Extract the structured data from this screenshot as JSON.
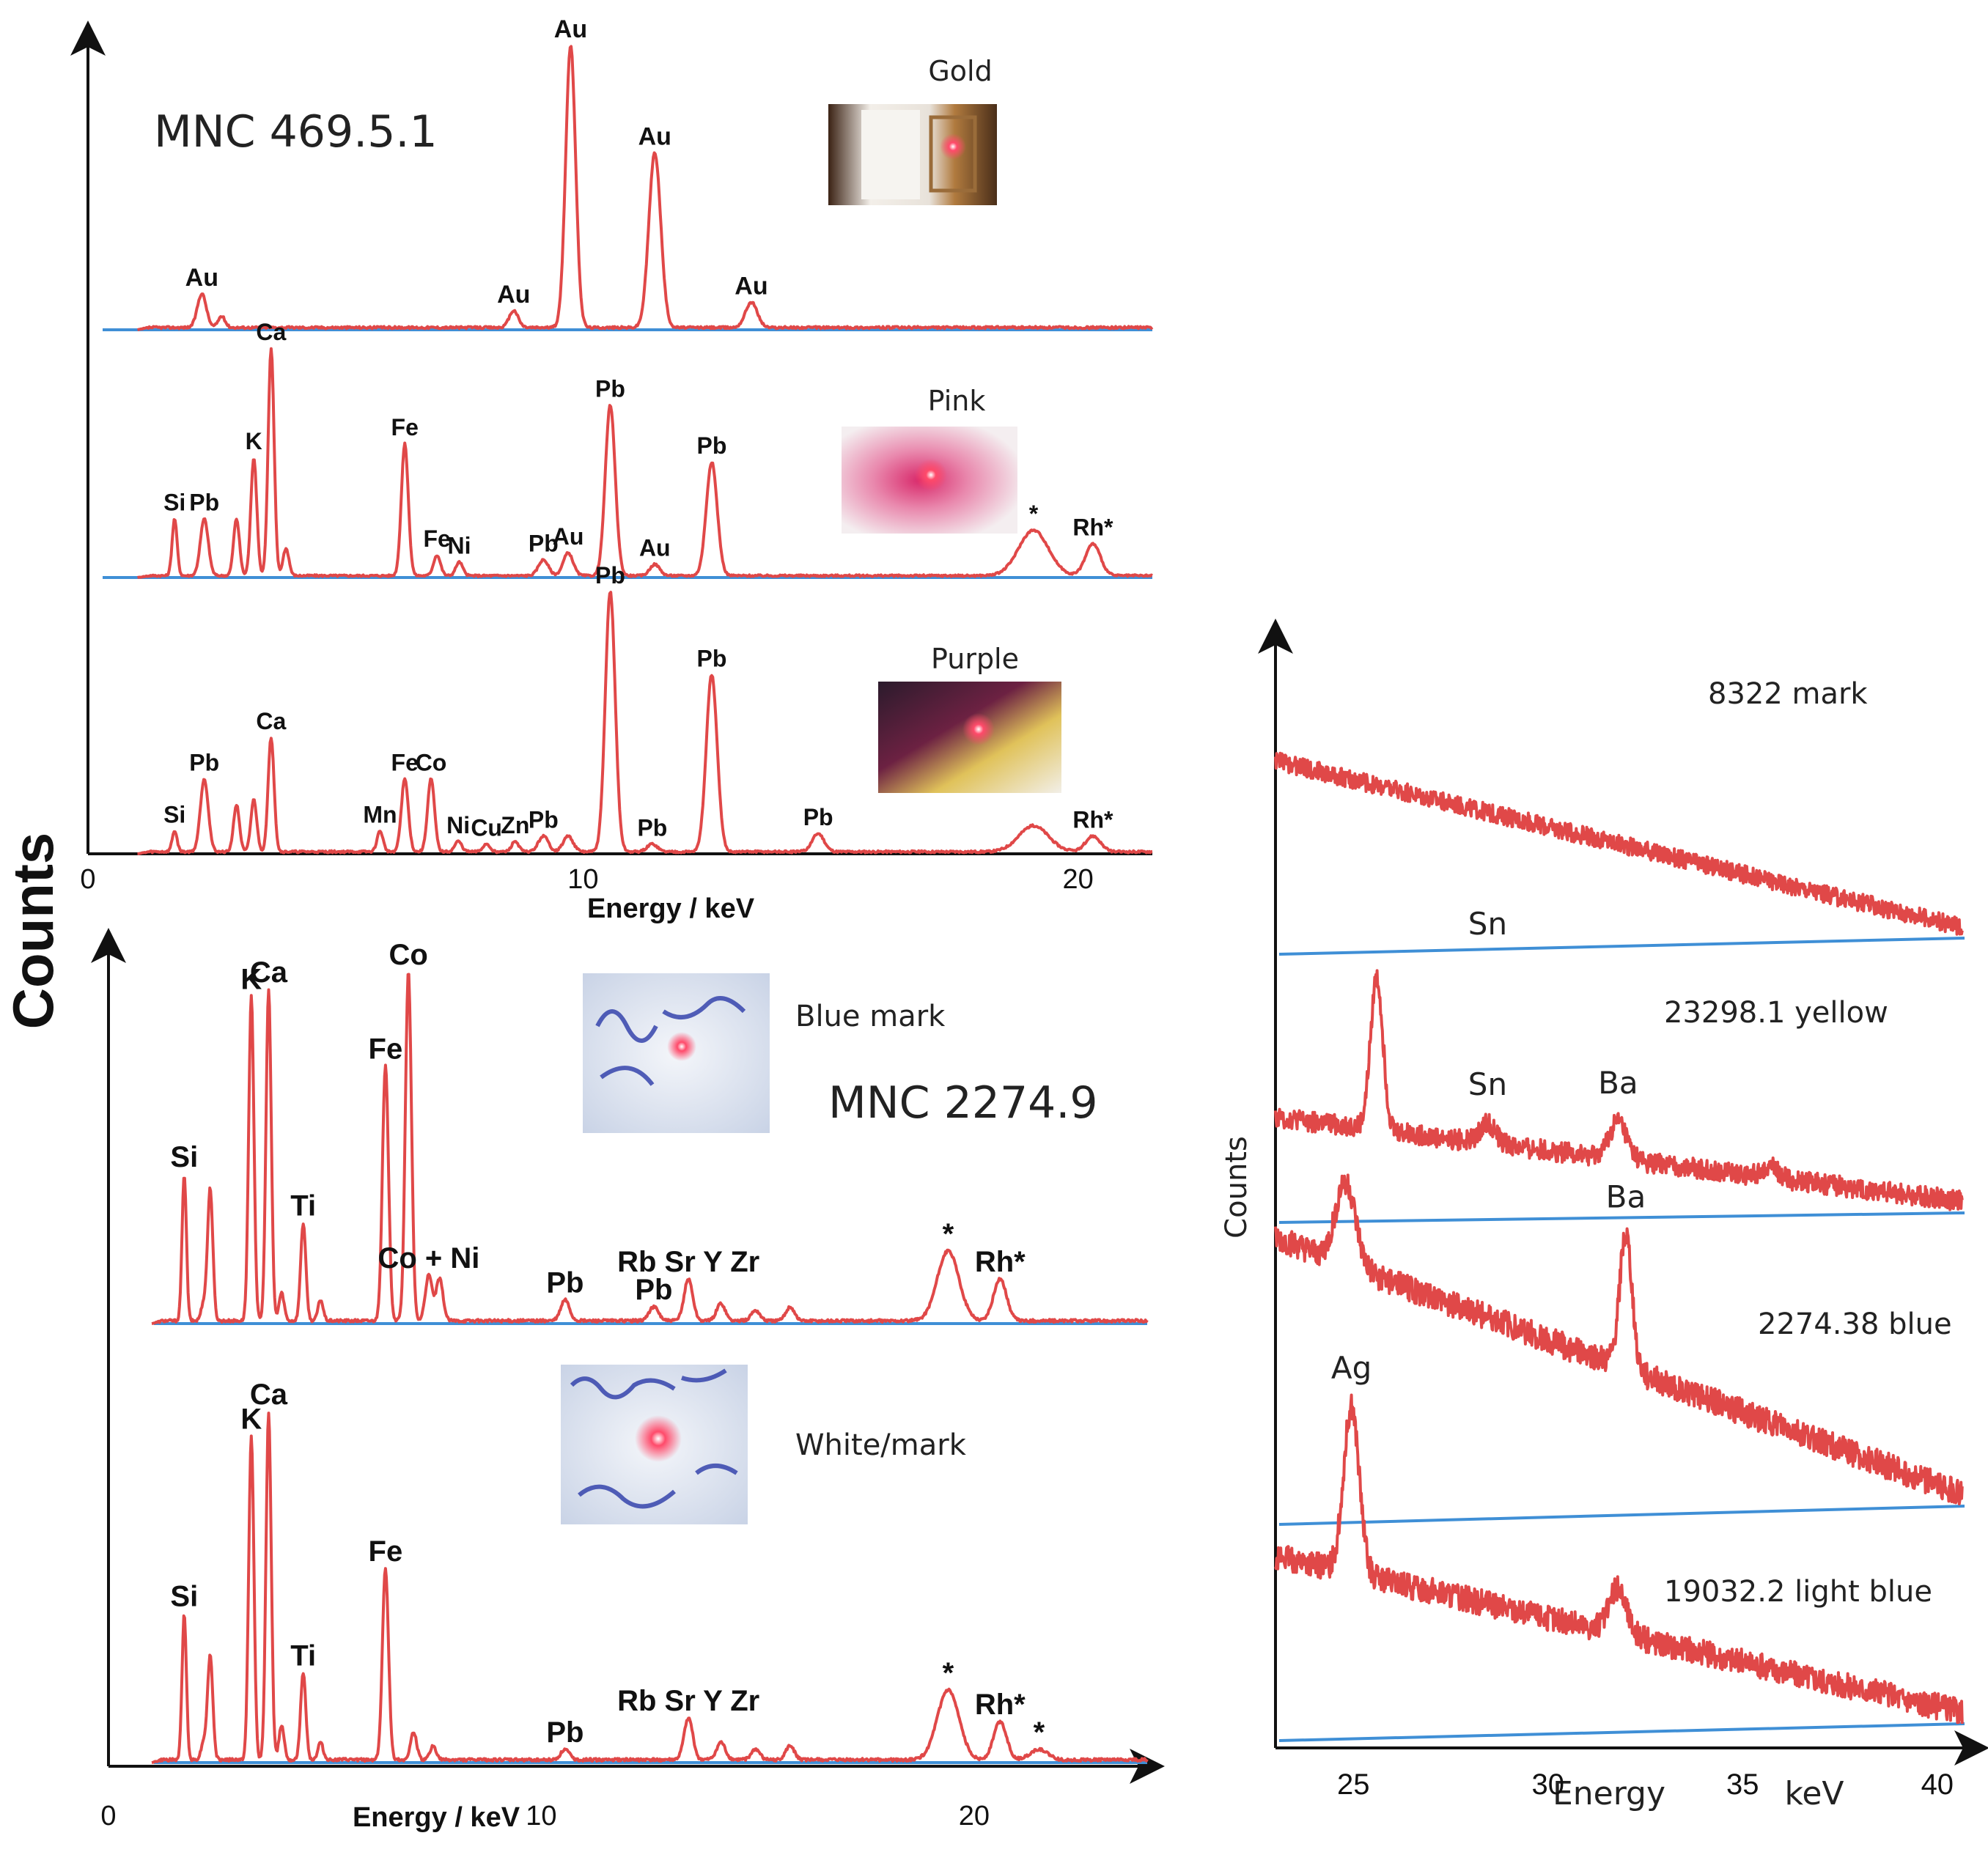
{
  "figure": {
    "ylabel_main": "Counts",
    "colors": {
      "spectrum": "#e04848",
      "baseline": "#3f8fd6",
      "axis": "#111111"
    }
  },
  "chart_data": [
    {
      "id": "mnc469",
      "type": "line",
      "title": "MNC 469.5.1",
      "xlabel": "Energy / keV",
      "ylabel": "Counts",
      "xlim": [
        0,
        21.5
      ],
      "xticks": [
        0,
        10,
        20
      ],
      "series": [
        {
          "name": "Gold",
          "inset": "Gold",
          "peaks": [
            {
              "x": 2.3,
              "h": 0.12,
              "w": 0.09,
              "label": "Au"
            },
            {
              "x": 2.7,
              "h": 0.04,
              "w": 0.07
            },
            {
              "x": 8.6,
              "h": 0.06,
              "w": 0.09,
              "label": "Au"
            },
            {
              "x": 9.75,
              "h": 1.0,
              "w": 0.1,
              "label": "Au"
            },
            {
              "x": 11.45,
              "h": 0.62,
              "w": 0.12,
              "label": "Au"
            },
            {
              "x": 13.4,
              "h": 0.09,
              "w": 0.12,
              "label": "Au"
            }
          ]
        },
        {
          "name": "Pink",
          "inset": "Pink",
          "peaks": [
            {
              "x": 1.75,
              "h": 0.25,
              "w": 0.05,
              "label": "Si"
            },
            {
              "x": 2.35,
              "h": 0.25,
              "w": 0.08,
              "label": "Pb"
            },
            {
              "x": 3.0,
              "h": 0.25,
              "w": 0.06
            },
            {
              "x": 3.35,
              "h": 0.52,
              "w": 0.06,
              "label": "K"
            },
            {
              "x": 3.7,
              "h": 1.0,
              "w": 0.06,
              "label": "Ca"
            },
            {
              "x": 4.0,
              "h": 0.12,
              "w": 0.06
            },
            {
              "x": 6.4,
              "h": 0.58,
              "w": 0.07,
              "label": "Fe"
            },
            {
              "x": 7.05,
              "h": 0.09,
              "w": 0.07,
              "label": "Fe"
            },
            {
              "x": 7.5,
              "h": 0.06,
              "w": 0.07,
              "label": "Ni"
            },
            {
              "x": 9.2,
              "h": 0.07,
              "w": 0.1,
              "label": "Pb"
            },
            {
              "x": 9.7,
              "h": 0.1,
              "w": 0.1,
              "label": "Au"
            },
            {
              "x": 10.55,
              "h": 0.75,
              "w": 0.1,
              "label": "Pb"
            },
            {
              "x": 11.45,
              "h": 0.05,
              "w": 0.1,
              "label": "Au"
            },
            {
              "x": 12.6,
              "h": 0.5,
              "w": 0.11,
              "label": "Pb"
            },
            {
              "x": 19.1,
              "h": 0.2,
              "w": 0.3,
              "label": "*"
            },
            {
              "x": 20.3,
              "h": 0.14,
              "w": 0.15,
              "label": "Rh*"
            }
          ]
        },
        {
          "name": "Purple",
          "inset": "Purple",
          "peaks": [
            {
              "x": 1.75,
              "h": 0.08,
              "w": 0.05,
              "label": "Si"
            },
            {
              "x": 2.35,
              "h": 0.28,
              "w": 0.08,
              "label": "Pb"
            },
            {
              "x": 3.0,
              "h": 0.18,
              "w": 0.06
            },
            {
              "x": 3.35,
              "h": 0.2,
              "w": 0.06
            },
            {
              "x": 3.7,
              "h": 0.44,
              "w": 0.06,
              "label": "Ca"
            },
            {
              "x": 5.9,
              "h": 0.08,
              "w": 0.06,
              "label": "Mn"
            },
            {
              "x": 6.4,
              "h": 0.28,
              "w": 0.07,
              "label": "Fe"
            },
            {
              "x": 6.93,
              "h": 0.28,
              "w": 0.07,
              "label": "Co"
            },
            {
              "x": 7.48,
              "h": 0.04,
              "w": 0.07,
              "label": "Ni"
            },
            {
              "x": 8.05,
              "h": 0.03,
              "w": 0.07,
              "label": "Cu"
            },
            {
              "x": 8.63,
              "h": 0.04,
              "w": 0.07,
              "label": "Zn"
            },
            {
              "x": 9.2,
              "h": 0.06,
              "w": 0.1,
              "label": "Pb"
            },
            {
              "x": 9.7,
              "h": 0.06,
              "w": 0.1
            },
            {
              "x": 10.55,
              "h": 1.0,
              "w": 0.1,
              "label": "Pb"
            },
            {
              "x": 11.4,
              "h": 0.03,
              "w": 0.1,
              "label": "Pb"
            },
            {
              "x": 12.6,
              "h": 0.68,
              "w": 0.11,
              "label": "Pb"
            },
            {
              "x": 14.75,
              "h": 0.07,
              "w": 0.12,
              "label": "Pb"
            },
            {
              "x": 19.1,
              "h": 0.1,
              "w": 0.3
            },
            {
              "x": 20.3,
              "h": 0.06,
              "w": 0.15,
              "label": "Rh*"
            }
          ]
        }
      ]
    },
    {
      "id": "mnc2274",
      "type": "line",
      "title": "MNC 2274.9",
      "xlabel": "Energy / keV",
      "ylabel": "Counts",
      "xlim": [
        0,
        24
      ],
      "xticks": [
        0,
        10,
        20
      ],
      "series": [
        {
          "name": "Blue mark",
          "inset": "Blue mark",
          "peaks": [
            {
              "x": 1.75,
              "h": 0.42,
              "w": 0.05,
              "label": "Si"
            },
            {
              "x": 2.2,
              "h": 0.05,
              "w": 0.06
            },
            {
              "x": 2.35,
              "h": 0.38,
              "w": 0.06
            },
            {
              "x": 3.3,
              "h": 0.93,
              "w": 0.06,
              "label": "K"
            },
            {
              "x": 3.7,
              "h": 0.95,
              "w": 0.06,
              "label": "Ca"
            },
            {
              "x": 4.0,
              "h": 0.08,
              "w": 0.06
            },
            {
              "x": 4.5,
              "h": 0.28,
              "w": 0.06,
              "label": "Ti"
            },
            {
              "x": 4.9,
              "h": 0.06,
              "w": 0.06
            },
            {
              "x": 6.4,
              "h": 0.73,
              "w": 0.07,
              "label": "Fe"
            },
            {
              "x": 6.93,
              "h": 1.0,
              "w": 0.07,
              "label": "Co"
            },
            {
              "x": 7.4,
              "h": 0.13,
              "w": 0.08,
              "label": "Co + Ni"
            },
            {
              "x": 7.65,
              "h": 0.12,
              "w": 0.08
            },
            {
              "x": 10.55,
              "h": 0.06,
              "w": 0.1,
              "label": "Pb"
            },
            {
              "x": 12.6,
              "h": 0.04,
              "w": 0.11,
              "label": "Pb"
            },
            {
              "x": 13.4,
              "h": 0.12,
              "w": 0.1,
              "label": "Rb Sr Y Zr"
            },
            {
              "x": 14.15,
              "h": 0.05,
              "w": 0.1
            },
            {
              "x": 14.95,
              "h": 0.03,
              "w": 0.1
            },
            {
              "x": 15.75,
              "h": 0.04,
              "w": 0.1
            },
            {
              "x": 19.4,
              "h": 0.2,
              "w": 0.25,
              "label": "*"
            },
            {
              "x": 20.6,
              "h": 0.12,
              "w": 0.15,
              "label": "Rh*"
            }
          ]
        },
        {
          "name": "White/mark",
          "inset": "White/mark",
          "peaks": [
            {
              "x": 1.75,
              "h": 0.42,
              "w": 0.05,
              "label": "Si"
            },
            {
              "x": 2.2,
              "h": 0.05,
              "w": 0.06
            },
            {
              "x": 2.35,
              "h": 0.3,
              "w": 0.06
            },
            {
              "x": 3.3,
              "h": 0.93,
              "w": 0.06,
              "label": "K"
            },
            {
              "x": 3.7,
              "h": 1.0,
              "w": 0.06,
              "label": "Ca"
            },
            {
              "x": 4.0,
              "h": 0.1,
              "w": 0.06
            },
            {
              "x": 4.5,
              "h": 0.25,
              "w": 0.06,
              "label": "Ti"
            },
            {
              "x": 4.9,
              "h": 0.05,
              "w": 0.06
            },
            {
              "x": 6.4,
              "h": 0.55,
              "w": 0.07,
              "label": "Fe"
            },
            {
              "x": 7.05,
              "h": 0.08,
              "w": 0.07
            },
            {
              "x": 7.5,
              "h": 0.04,
              "w": 0.07
            },
            {
              "x": 10.55,
              "h": 0.03,
              "w": 0.1,
              "label": "Pb"
            },
            {
              "x": 13.4,
              "h": 0.12,
              "w": 0.1,
              "label": "Rb Sr Y Zr"
            },
            {
              "x": 14.15,
              "h": 0.05,
              "w": 0.1
            },
            {
              "x": 14.95,
              "h": 0.03,
              "w": 0.1
            },
            {
              "x": 15.75,
              "h": 0.04,
              "w": 0.1
            },
            {
              "x": 19.4,
              "h": 0.2,
              "w": 0.25,
              "label": "*"
            },
            {
              "x": 20.6,
              "h": 0.11,
              "w": 0.15,
              "label": "Rh*"
            },
            {
              "x": 21.5,
              "h": 0.03,
              "w": 0.2,
              "label": "*"
            }
          ]
        }
      ]
    },
    {
      "id": "high-energy",
      "type": "line",
      "title": "",
      "xlabel": "Energy",
      "xunit": "keV",
      "ylabel": "Counts",
      "xlim": [
        23,
        40.7
      ],
      "xticks": [
        25,
        30,
        35,
        40
      ],
      "series": [
        {
          "name": "8322 mark",
          "bg_start": 0.75,
          "bg_end": 0.04,
          "peaks": [
            {
              "x": 28.45,
              "h": 0.0,
              "w": 0.2,
              "label": "Sn"
            }
          ]
        },
        {
          "name": "23298.1 yellow",
          "bg_start": 0.36,
          "bg_end": 0.04,
          "peaks": [
            {
              "x": 25.6,
              "h": 0.52,
              "w": 0.16
            },
            {
              "x": 28.45,
              "h": 0.07,
              "w": 0.2,
              "label": "Sn"
            },
            {
              "x": 31.8,
              "h": 0.13,
              "w": 0.22,
              "label": "Ba"
            },
            {
              "x": 35.7,
              "h": 0.04,
              "w": 0.2
            }
          ]
        },
        {
          "name": "2274.38 blue",
          "bg_start": 0.75,
          "bg_end": 0.03,
          "peaks": [
            {
              "x": 24.8,
              "h": 0.22,
              "w": 0.25
            },
            {
              "x": 32.0,
              "h": 0.35,
              "w": 0.16,
              "label": "Ba"
            }
          ]
        },
        {
          "name": "19032.2 light blue",
          "bg_start": 0.5,
          "bg_end": 0.03,
          "peaks": [
            {
              "x": 24.95,
              "h": 0.45,
              "w": 0.2,
              "label": "Ag"
            },
            {
              "x": 31.8,
              "h": 0.12,
              "w": 0.22
            }
          ]
        }
      ]
    }
  ]
}
